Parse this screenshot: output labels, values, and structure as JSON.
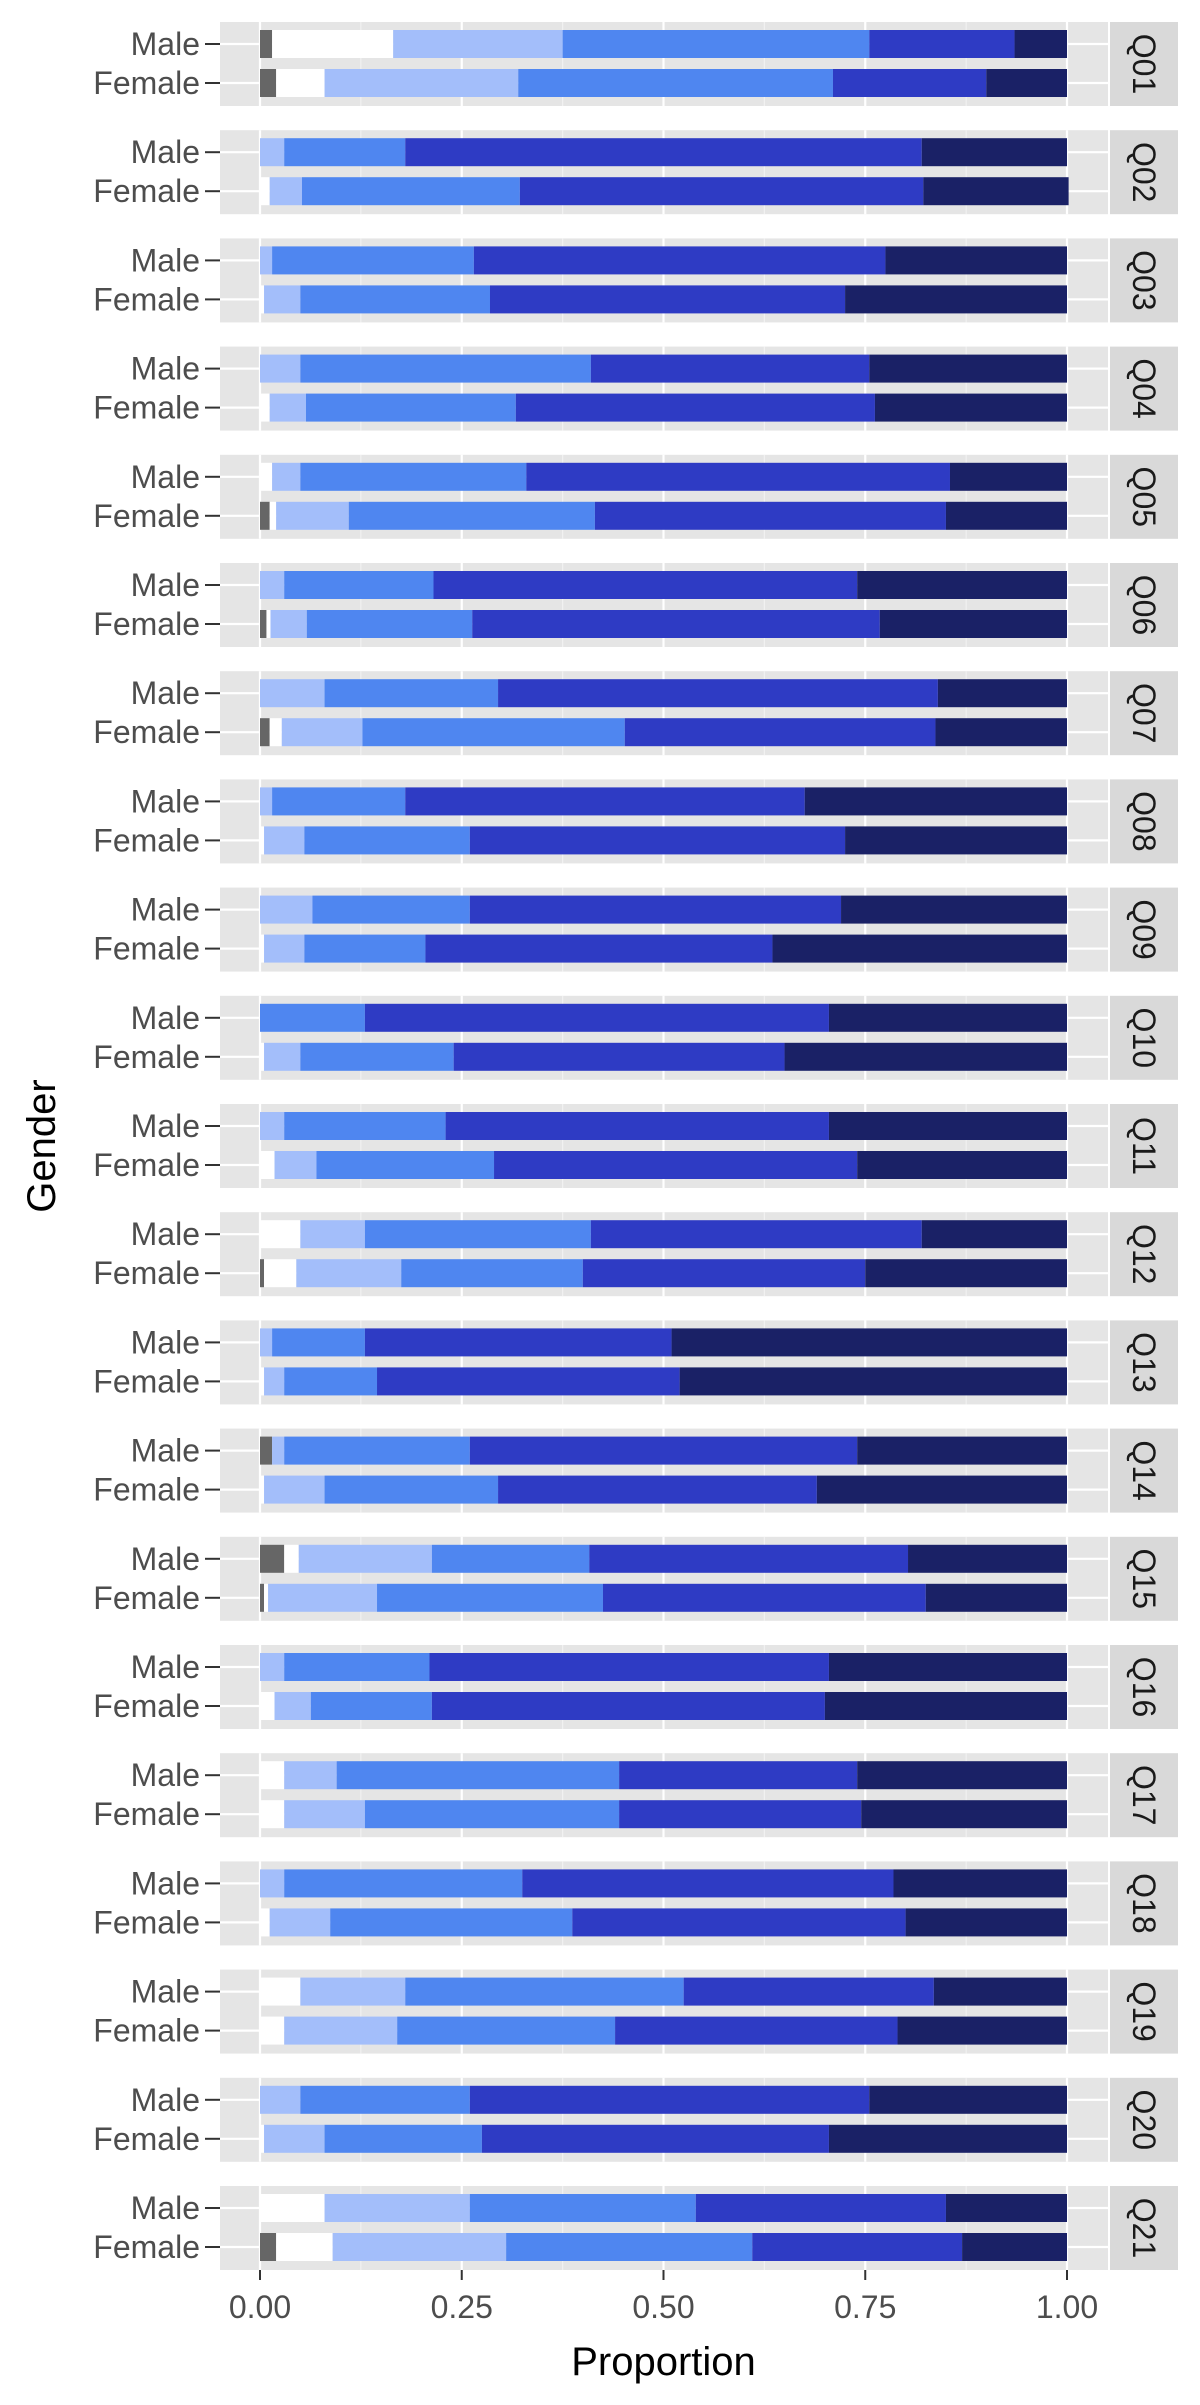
{
  "chart_data": {
    "type": "bar",
    "orientation": "horizontal",
    "stacked": true,
    "xlabel": "Proportion",
    "ylabel": "Gender",
    "xlim": [
      0,
      1
    ],
    "xticks": [
      "0.00",
      "0.25",
      "0.50",
      "0.75",
      "1.00"
    ],
    "xtick_values": [
      0,
      0.25,
      0.5,
      0.75,
      1.0
    ],
    "groups": [
      "Male",
      "Female"
    ],
    "panels": [
      "Q01",
      "Q02",
      "Q03",
      "Q04",
      "Q05",
      "Q06",
      "Q07",
      "Q08",
      "Q09",
      "Q10",
      "Q11",
      "Q12",
      "Q13",
      "Q14",
      "Q15",
      "Q16",
      "Q17",
      "Q18",
      "Q19",
      "Q20",
      "Q21"
    ],
    "segment_colors": [
      "#666666",
      "#ffffff",
      "#a3befa",
      "#4f86f0",
      "#2e3bc4",
      "#1a2166"
    ],
    "panel_background": "#e5e5e5",
    "strip_background": "#d9d9d9",
    "grid": true,
    "legend": "none",
    "values": [
      [
        [
          0.015,
          0.15,
          0.21,
          0.38,
          0.18,
          0.065
        ],
        [
          0.02,
          0.06,
          0.24,
          0.39,
          0.19,
          0.1
        ]
      ],
      [
        [
          0,
          0,
          0.03,
          0.15,
          0.64,
          0.18
        ],
        [
          0,
          0.012,
          0.04,
          0.27,
          0.5,
          0.18
        ]
      ],
      [
        [
          0,
          0,
          0.015,
          0.25,
          0.51,
          0.225
        ],
        [
          0,
          0.005,
          0.045,
          0.235,
          0.44,
          0.275
        ]
      ],
      [
        [
          0,
          0,
          0.05,
          0.36,
          0.345,
          0.245
        ],
        [
          0,
          0.012,
          0.045,
          0.26,
          0.445,
          0.238
        ]
      ],
      [
        [
          0,
          0.015,
          0.035,
          0.28,
          0.525,
          0.145
        ],
        [
          0.012,
          0.008,
          0.09,
          0.305,
          0.435,
          0.15
        ]
      ],
      [
        [
          0,
          0,
          0.03,
          0.185,
          0.525,
          0.26
        ],
        [
          0.008,
          0.005,
          0.045,
          0.205,
          0.505,
          0.232
        ]
      ],
      [
        [
          0,
          0,
          0.08,
          0.215,
          0.545,
          0.16
        ],
        [
          0.012,
          0.015,
          0.1,
          0.325,
          0.385,
          0.163
        ]
      ],
      [
        [
          0,
          0,
          0.015,
          0.165,
          0.495,
          0.325
        ],
        [
          0,
          0.005,
          0.05,
          0.205,
          0.465,
          0.275
        ]
      ],
      [
        [
          0,
          0,
          0.065,
          0.195,
          0.46,
          0.28
        ],
        [
          0,
          0.005,
          0.05,
          0.15,
          0.43,
          0.365
        ]
      ],
      [
        [
          0,
          0,
          0,
          0.13,
          0.575,
          0.295
        ],
        [
          0,
          0.005,
          0.045,
          0.19,
          0.41,
          0.35
        ]
      ],
      [
        [
          0,
          0,
          0.03,
          0.2,
          0.475,
          0.295
        ],
        [
          0,
          0.018,
          0.052,
          0.22,
          0.45,
          0.26
        ]
      ],
      [
        [
          0,
          0.05,
          0.08,
          0.28,
          0.41,
          0.18
        ],
        [
          0.005,
          0.04,
          0.13,
          0.225,
          0.35,
          0.25
        ]
      ],
      [
        [
          0,
          0,
          0.015,
          0.115,
          0.38,
          0.49
        ],
        [
          0,
          0.005,
          0.025,
          0.115,
          0.375,
          0.48
        ]
      ],
      [
        [
          0.015,
          0,
          0.015,
          0.23,
          0.48,
          0.26
        ],
        [
          0,
          0.005,
          0.075,
          0.215,
          0.395,
          0.31
        ]
      ],
      [
        [
          0.03,
          0.018,
          0.165,
          0.195,
          0.395,
          0.197
        ],
        [
          0.005,
          0.005,
          0.135,
          0.28,
          0.4,
          0.175
        ]
      ],
      [
        [
          0,
          0,
          0.03,
          0.18,
          0.495,
          0.295
        ],
        [
          0,
          0.018,
          0.045,
          0.15,
          0.487,
          0.3
        ]
      ],
      [
        [
          0,
          0.03,
          0.065,
          0.35,
          0.295,
          0.26
        ],
        [
          0,
          0.03,
          0.1,
          0.315,
          0.3,
          0.255
        ]
      ],
      [
        [
          0,
          0,
          0.03,
          0.295,
          0.46,
          0.215
        ],
        [
          0,
          0.012,
          0.075,
          0.3,
          0.413,
          0.2
        ]
      ],
      [
        [
          0,
          0.05,
          0.13,
          0.345,
          0.31,
          0.165
        ],
        [
          0,
          0.03,
          0.14,
          0.27,
          0.35,
          0.21
        ]
      ],
      [
        [
          0,
          0,
          0.05,
          0.21,
          0.495,
          0.245
        ],
        [
          0,
          0.005,
          0.075,
          0.195,
          0.43,
          0.295
        ]
      ],
      [
        [
          0,
          0.08,
          0.18,
          0.28,
          0.31,
          0.15
        ],
        [
          0.02,
          0.07,
          0.215,
          0.305,
          0.26,
          0.13
        ]
      ]
    ]
  }
}
